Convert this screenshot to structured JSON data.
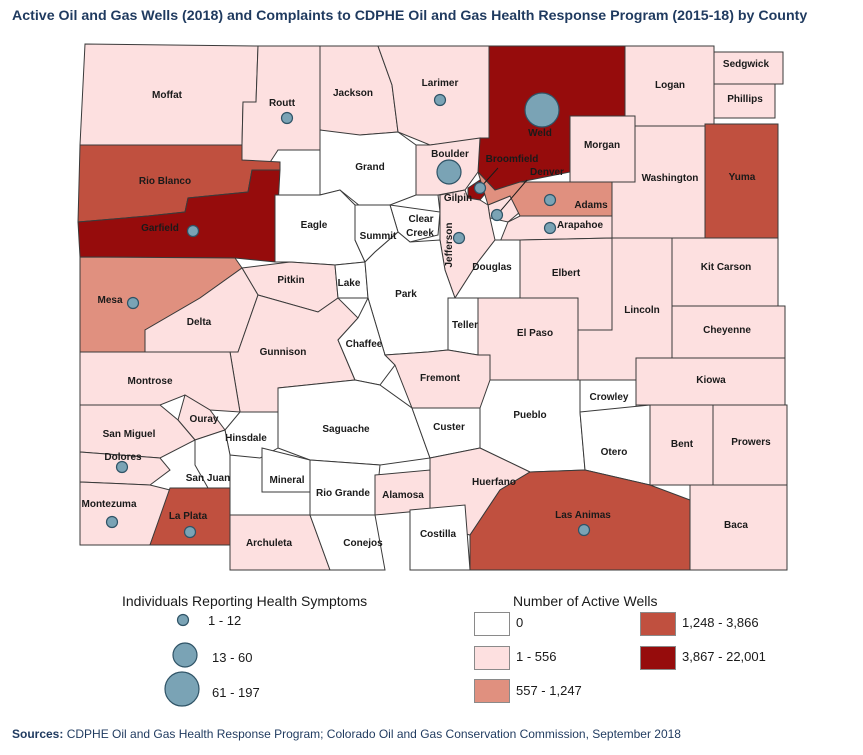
{
  "title": "Active Oil and Gas Wells (2018) and Complaints to CDPHE Oil and Gas Health Response Program (2015-18) by County",
  "colors": {
    "zero": "#ffffff",
    "low": "#fde0e0",
    "mid": "#e0907f",
    "high": "#c0503f",
    "top": "#960c0c",
    "bubble": "#7aa3b5"
  },
  "counties": [
    {
      "name": "Moffat",
      "cls": "low"
    },
    {
      "name": "Routt",
      "cls": "low"
    },
    {
      "name": "Jackson",
      "cls": "low"
    },
    {
      "name": "Larimer",
      "cls": "low"
    },
    {
      "name": "Weld",
      "cls": "top"
    },
    {
      "name": "Logan",
      "cls": "low"
    },
    {
      "name": "Sedgwick",
      "cls": "low"
    },
    {
      "name": "Phillips",
      "cls": "low"
    },
    {
      "name": "Rio Blanco",
      "cls": "high"
    },
    {
      "name": "Grand",
      "cls": "zero"
    },
    {
      "name": "Boulder",
      "cls": "low"
    },
    {
      "name": "Broomfield",
      "cls": "top"
    },
    {
      "name": "Morgan",
      "cls": "low"
    },
    {
      "name": "Washington",
      "cls": "low"
    },
    {
      "name": "Yuma",
      "cls": "high"
    },
    {
      "name": "Garfield",
      "cls": "top"
    },
    {
      "name": "Eagle",
      "cls": "zero"
    },
    {
      "name": "Gilpin",
      "cls": "zero"
    },
    {
      "name": "Clear Creek",
      "cls": "zero"
    },
    {
      "name": "Summit",
      "cls": "zero"
    },
    {
      "name": "Denver",
      "cls": "low"
    },
    {
      "name": "Adams",
      "cls": "mid"
    },
    {
      "name": "Arapahoe",
      "cls": "low"
    },
    {
      "name": "Jefferson",
      "cls": "low"
    },
    {
      "name": "Douglas",
      "cls": "zero"
    },
    {
      "name": "Elbert",
      "cls": "low"
    },
    {
      "name": "Kit Carson",
      "cls": "low"
    },
    {
      "name": "Mesa",
      "cls": "mid"
    },
    {
      "name": "Pitkin",
      "cls": "low"
    },
    {
      "name": "Lake",
      "cls": "zero"
    },
    {
      "name": "Park",
      "cls": "zero"
    },
    {
      "name": "Delta",
      "cls": "low"
    },
    {
      "name": "Teller",
      "cls": "zero"
    },
    {
      "name": "El Paso",
      "cls": "low"
    },
    {
      "name": "Lincoln",
      "cls": "low"
    },
    {
      "name": "Cheyenne",
      "cls": "low"
    },
    {
      "name": "Gunnison",
      "cls": "low"
    },
    {
      "name": "Chaffee",
      "cls": "zero"
    },
    {
      "name": "Fremont",
      "cls": "low"
    },
    {
      "name": "Kiowa",
      "cls": "low"
    },
    {
      "name": "Montrose",
      "cls": "low"
    },
    {
      "name": "Ouray",
      "cls": "low"
    },
    {
      "name": "Crowley",
      "cls": "zero"
    },
    {
      "name": "Saguache",
      "cls": "zero"
    },
    {
      "name": "Custer",
      "cls": "zero"
    },
    {
      "name": "Pueblo",
      "cls": "zero"
    },
    {
      "name": "San Miguel",
      "cls": "low"
    },
    {
      "name": "Hinsdale",
      "cls": "zero"
    },
    {
      "name": "Bent",
      "cls": "low"
    },
    {
      "name": "Prowers",
      "cls": "low"
    },
    {
      "name": "Otero",
      "cls": "zero"
    },
    {
      "name": "Dolores",
      "cls": "low"
    },
    {
      "name": "San Juan",
      "cls": "zero"
    },
    {
      "name": "Mineral",
      "cls": "zero"
    },
    {
      "name": "Rio Grande",
      "cls": "zero"
    },
    {
      "name": "Alamosa",
      "cls": "low"
    },
    {
      "name": "Huerfano",
      "cls": "low"
    },
    {
      "name": "Montezuma",
      "cls": "low"
    },
    {
      "name": "La Plata",
      "cls": "high"
    },
    {
      "name": "Archuleta",
      "cls": "low"
    },
    {
      "name": "Conejos",
      "cls": "zero"
    },
    {
      "name": "Costilla",
      "cls": "zero"
    },
    {
      "name": "Las Animas",
      "cls": "high"
    },
    {
      "name": "Baca",
      "cls": "low"
    }
  ],
  "symptom_points": [
    {
      "county": "Routt",
      "size": "small"
    },
    {
      "county": "Larimer",
      "size": "small"
    },
    {
      "county": "Weld",
      "size": "large"
    },
    {
      "county": "Boulder",
      "size": "medium"
    },
    {
      "county": "Broomfield",
      "size": "small"
    },
    {
      "county": "Adams",
      "size": "small"
    },
    {
      "county": "Arapahoe",
      "size": "small"
    },
    {
      "county": "Denver",
      "size": "small"
    },
    {
      "county": "Jefferson",
      "size": "small"
    },
    {
      "county": "Garfield",
      "size": "small"
    },
    {
      "county": "Mesa",
      "size": "small"
    },
    {
      "county": "Dolores",
      "size": "small"
    },
    {
      "county": "Montezuma",
      "size": "small"
    },
    {
      "county": "La Plata",
      "size": "small"
    },
    {
      "county": "Las Animas",
      "size": "small"
    }
  ],
  "legend_symptoms": {
    "title": "Individuals Reporting Health Symptoms",
    "items": [
      {
        "label": "1 - 12",
        "size": "small"
      },
      {
        "label": "13 - 60",
        "size": "medium"
      },
      {
        "label": "61 - 197",
        "size": "large"
      }
    ]
  },
  "legend_wells": {
    "title": "Number of Active Wells",
    "items": [
      {
        "label": "0",
        "cls": "zero"
      },
      {
        "label": "1 - 556",
        "cls": "low"
      },
      {
        "label": "557 - 1,247",
        "cls": "mid"
      },
      {
        "label": "1,248 - 3,866",
        "cls": "high"
      },
      {
        "label": "3,867 - 22,001",
        "cls": "top"
      }
    ]
  },
  "sources": {
    "prefix": "Sources:",
    "text": " CDPHE Oil and Gas Health Response Program; Colorado Oil and Gas Conservation Commission, September 2018"
  }
}
